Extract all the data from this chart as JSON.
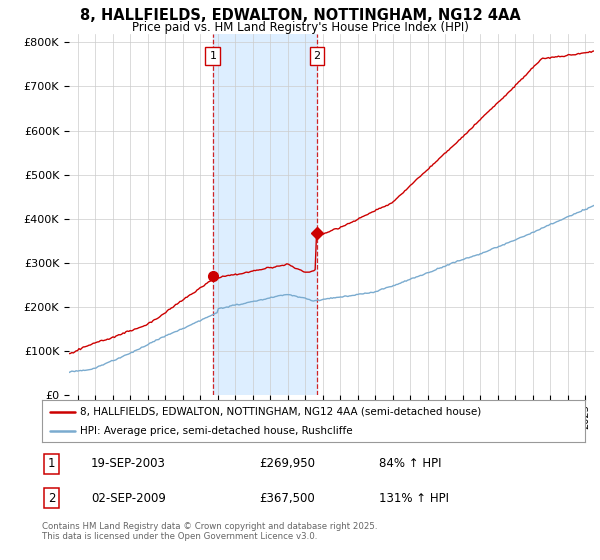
{
  "title_line1": "8, HALLFIELDS, EDWALTON, NOTTINGHAM, NG12 4AA",
  "title_line2": "Price paid vs. HM Land Registry's House Price Index (HPI)",
  "ylabel_ticks": [
    "£0",
    "£100K",
    "£200K",
    "£300K",
    "£400K",
    "£500K",
    "£600K",
    "£700K",
    "£800K"
  ],
  "ytick_values": [
    0,
    100000,
    200000,
    300000,
    400000,
    500000,
    600000,
    700000,
    800000
  ],
  "ylim": [
    0,
    820000
  ],
  "xlim_start": 1995.5,
  "xlim_end": 2025.5,
  "legend_line1": "8, HALLFIELDS, EDWALTON, NOTTINGHAM, NG12 4AA (semi-detached house)",
  "legend_line2": "HPI: Average price, semi-detached house, Rushcliffe",
  "sale1_label": "1",
  "sale1_date": "19-SEP-2003",
  "sale1_price": "£269,950",
  "sale1_hpi": "84% ↑ HPI",
  "sale1_x": 2003.72,
  "sale1_y": 269950,
  "sale2_label": "2",
  "sale2_date": "02-SEP-2009",
  "sale2_price": "£367,500",
  "sale2_hpi": "131% ↑ HPI",
  "sale2_x": 2009.67,
  "sale2_y": 367500,
  "red_color": "#cc0000",
  "blue_color": "#7aabcf",
  "shaded_color": "#ddeeff",
  "grid_color": "#cccccc",
  "bg_color": "#ffffff",
  "footer": "Contains HM Land Registry data © Crown copyright and database right 2025.\nThis data is licensed under the Open Government Licence v3.0."
}
